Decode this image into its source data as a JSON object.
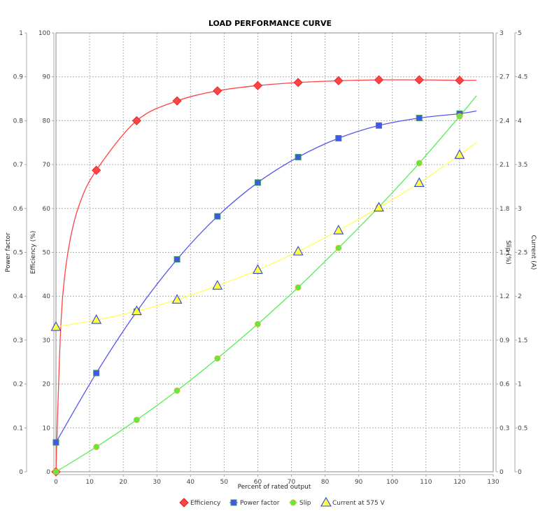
{
  "chart_data": {
    "type": "line",
    "title": "LOAD PERFORMANCE CURVE",
    "xlabel": "Percent of rated output",
    "xlim": [
      0,
      130
    ],
    "xticks": [
      0,
      10,
      20,
      30,
      40,
      50,
      60,
      70,
      80,
      90,
      100,
      110,
      120,
      130
    ],
    "x": [
      0,
      12,
      24,
      36,
      48,
      60,
      72,
      84,
      96,
      108,
      120
    ],
    "axes": {
      "power_factor": {
        "label": "Power factor",
        "range": [
          0,
          1
        ],
        "ticks": [
          "0",
          "0.1",
          "0.2",
          "0.3",
          "0.4",
          "0.5",
          "0.6",
          "0.7",
          "0.8",
          "0.9",
          "1"
        ],
        "side": "left-outer"
      },
      "efficiency": {
        "label": "Efficiency (%)",
        "range": [
          0,
          100
        ],
        "ticks": [
          "0",
          "10",
          "20",
          "30",
          "40",
          "50",
          "60",
          "70",
          "80",
          "90",
          "100"
        ],
        "side": "left-inner"
      },
      "slip": {
        "label": "Slip (%)",
        "range": [
          0,
          3
        ],
        "ticks": [
          "0",
          "0.3",
          "0.6",
          "0.9",
          "1.2",
          "1.5",
          "1.8",
          "2.1",
          "2.4",
          "2.7",
          "3"
        ],
        "side": "right-inner"
      },
      "current": {
        "label": "Current (A)",
        "range": [
          0,
          5
        ],
        "ticks": [
          "0",
          "0.5",
          "1",
          "1.5",
          "2",
          "2.5",
          "3",
          "3.5",
          "4",
          "4.5",
          "5"
        ],
        "side": "right-outer"
      }
    },
    "series": [
      {
        "name": "Efficiency",
        "axis": "efficiency",
        "color": "#ff4444",
        "marker": "diamond",
        "values": [
          0,
          68.7,
          80.0,
          84.5,
          86.8,
          88.0,
          88.7,
          89.1,
          89.3,
          89.3,
          89.2
        ],
        "curve_end": [
          125,
          89.2
        ]
      },
      {
        "name": "Power factor",
        "axis": "power_factor",
        "color": "#5555ee",
        "marker": "square",
        "values": [
          0.067,
          0.225,
          0.365,
          0.484,
          0.582,
          0.659,
          0.717,
          0.76,
          0.789,
          0.806,
          0.816
        ],
        "curve_end": [
          125,
          0.822
        ]
      },
      {
        "name": "Slip",
        "axis": "slip",
        "color": "#55ee55",
        "marker": "circle",
        "values": [
          0.0,
          0.17,
          0.355,
          0.555,
          0.775,
          1.01,
          1.26,
          1.53,
          1.81,
          2.11,
          2.43
        ],
        "curve_end": [
          125,
          2.57
        ]
      },
      {
        "name": "Current at 575 V",
        "axis": "current",
        "color": "#ffff55",
        "marker": "triangle",
        "values": [
          1.65,
          1.73,
          1.83,
          1.96,
          2.12,
          2.3,
          2.51,
          2.75,
          3.01,
          3.29,
          3.61
        ],
        "curve_end": [
          125,
          3.75
        ]
      }
    ],
    "grid": true,
    "legend_position": "bottom"
  },
  "legend": [
    {
      "label": "Efficiency"
    },
    {
      "label": "Power factor"
    },
    {
      "label": "Slip"
    },
    {
      "label": "Current at 575 V"
    }
  ]
}
